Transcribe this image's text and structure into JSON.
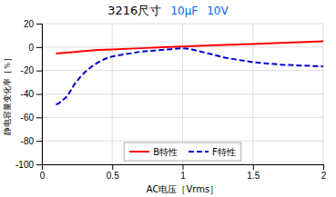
{
  "chart_data": {
    "type": "line",
    "title": "3216尺寸",
    "annotations": [
      {
        "text": "10μF",
        "color": "#0066ff"
      },
      {
        "text": "10V",
        "color": "#0066ff"
      }
    ],
    "x_label": "AC电压［Vrms］",
    "y_label": "静电容量变化率［％］",
    "xlim": [
      0,
      2
    ],
    "ylim": [
      -100,
      20
    ],
    "xticks": [
      0,
      0.5,
      1,
      1.5,
      2
    ],
    "yticks": [
      20,
      0,
      -20,
      -40,
      -60,
      -80,
      -100
    ],
    "grid": true,
    "legend": "bottom",
    "series": [
      {
        "name": "B特性",
        "color": "#ff0000",
        "line_style": "solid",
        "x": [
          0.1,
          0.15,
          0.2,
          0.3,
          0.4,
          0.5,
          0.7,
          0.9,
          1.0,
          1.2,
          1.5,
          1.7,
          2.0
        ],
        "values": [
          -5.5,
          -5.0,
          -4.5,
          -3.5,
          -2.5,
          -2.0,
          -1.0,
          0.0,
          0.5,
          1.5,
          2.5,
          3.5,
          5.0
        ]
      },
      {
        "name": "F特性",
        "color": "#0000cc",
        "line_style": "dashed",
        "x": [
          0.1,
          0.12,
          0.14,
          0.16,
          0.18,
          0.2,
          0.23,
          0.27,
          0.3,
          0.35,
          0.4,
          0.45,
          0.5,
          0.6,
          0.7,
          0.8,
          0.9,
          1.0,
          1.05,
          1.1,
          1.2,
          1.3,
          1.4,
          1.5,
          1.6,
          1.7,
          1.8,
          1.9,
          2.0
        ],
        "values": [
          -49,
          -48,
          -46,
          -44,
          -42,
          -38,
          -32,
          -26,
          -22,
          -17,
          -13,
          -10,
          -8,
          -6,
          -4,
          -3,
          -2,
          -1,
          -1.5,
          -3,
          -6,
          -9,
          -11,
          -13,
          -14,
          -15,
          -15.5,
          -16,
          -16.5
        ]
      }
    ]
  }
}
